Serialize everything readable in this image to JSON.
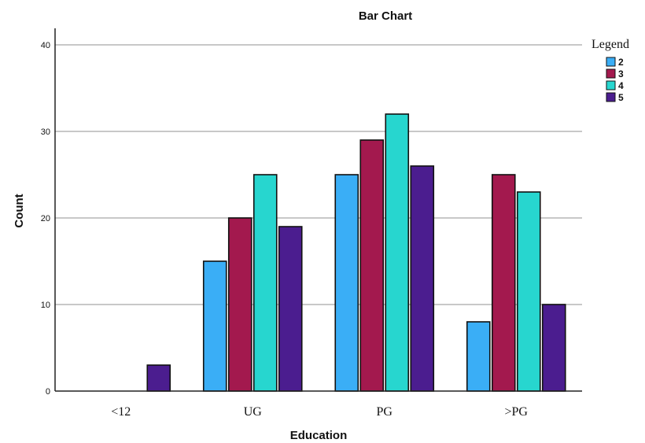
{
  "chart_data": {
    "type": "bar",
    "title": "Bar Chart",
    "xlabel": "Education",
    "ylabel": "Count",
    "categories": [
      "<12",
      "UG",
      "PG",
      ">PG"
    ],
    "series": [
      {
        "name": "2",
        "color": "#3aaef6",
        "values": [
          null,
          15,
          25,
          8
        ]
      },
      {
        "name": "3",
        "color": "#a3194e",
        "values": [
          null,
          20,
          29,
          25
        ]
      },
      {
        "name": "4",
        "color": "#27d6cf",
        "values": [
          null,
          25,
          32,
          23
        ]
      },
      {
        "name": "5",
        "color": "#4b1d8f",
        "values": [
          3,
          19,
          26,
          10
        ]
      }
    ],
    "ylim": [
      0,
      40
    ],
    "yticks": [
      0,
      10,
      20,
      30,
      40
    ],
    "grid": true,
    "legend": {
      "title": "Legend",
      "placement": "top-right"
    }
  }
}
